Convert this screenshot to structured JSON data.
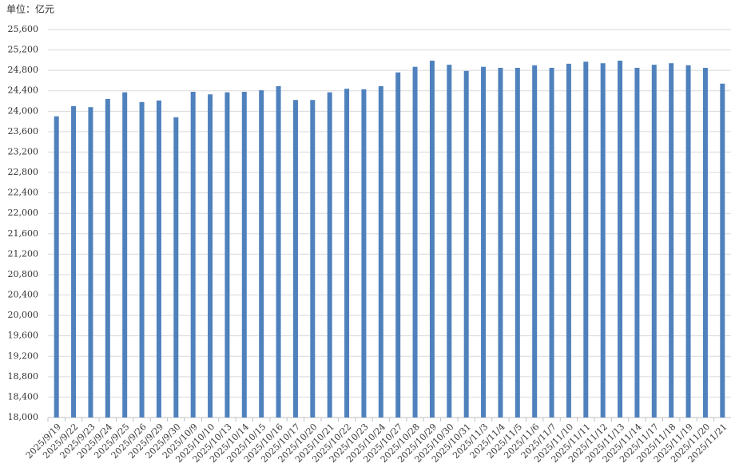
{
  "chart_data": {
    "type": "bar",
    "unit_label": "单位：亿元",
    "categories": [
      "2025/9/19",
      "2025/9/22",
      "2025/9/23",
      "2025/9/24",
      "2025/9/25",
      "2025/9/26",
      "2025/9/29",
      "2025/9/30",
      "2025/10/9",
      "2025/10/10",
      "2025/10/13",
      "2025/10/14",
      "2025/10/15",
      "2025/10/16",
      "2025/10/17",
      "2025/10/20",
      "2025/10/21",
      "2025/10/22",
      "2025/10/23",
      "2025/10/24",
      "2025/10/27",
      "2025/10/28",
      "2025/10/29",
      "2025/10/30",
      "2025/10/31",
      "2025/11/3",
      "2025/11/4",
      "2025/11/5",
      "2025/11/6",
      "2025/11/7",
      "2025/11/10",
      "2025/11/11",
      "2025/11/12",
      "2025/11/13",
      "2025/11/14",
      "2025/11/17",
      "2025/11/18",
      "2025/11/19",
      "2025/11/20",
      "2025/11/21"
    ],
    "values": [
      23900,
      24100,
      24080,
      24240,
      24370,
      24180,
      24210,
      23880,
      24380,
      24330,
      24370,
      24380,
      24410,
      24490,
      24220,
      24220,
      24370,
      24440,
      24430,
      24490,
      24760,
      24870,
      24990,
      24910,
      24790,
      24870,
      24850,
      24850,
      24900,
      24850,
      24930,
      24970,
      24940,
      24990,
      24850,
      24910,
      24940,
      24900,
      24850,
      24540
    ],
    "color": "#4f81bd",
    "ylim": [
      18000,
      25600
    ],
    "yticks": [
      {
        "value": 18000,
        "label": "18,000"
      },
      {
        "value": 18400,
        "label": "18,400"
      },
      {
        "value": 18800,
        "label": "18,800"
      },
      {
        "value": 19200,
        "label": "19,200"
      },
      {
        "value": 19600,
        "label": "19,600"
      },
      {
        "value": 20000,
        "label": "20,000"
      },
      {
        "value": 20400,
        "label": "20,400"
      },
      {
        "value": 20800,
        "label": "20,800"
      },
      {
        "value": 21200,
        "label": "21,200"
      },
      {
        "value": 21600,
        "label": "21,600"
      },
      {
        "value": 22000,
        "label": "22,000"
      },
      {
        "value": 22400,
        "label": "22,400"
      },
      {
        "value": 22800,
        "label": "22,800"
      },
      {
        "value": 23200,
        "label": "23,200"
      },
      {
        "value": 23600,
        "label": "23,600"
      },
      {
        "value": 24000,
        "label": "24,000"
      },
      {
        "value": 24400,
        "label": "24,400"
      },
      {
        "value": 24800,
        "label": "24,800"
      },
      {
        "value": 25200,
        "label": "25,200"
      },
      {
        "value": 25600,
        "label": "25,600"
      }
    ],
    "grid": true
  }
}
